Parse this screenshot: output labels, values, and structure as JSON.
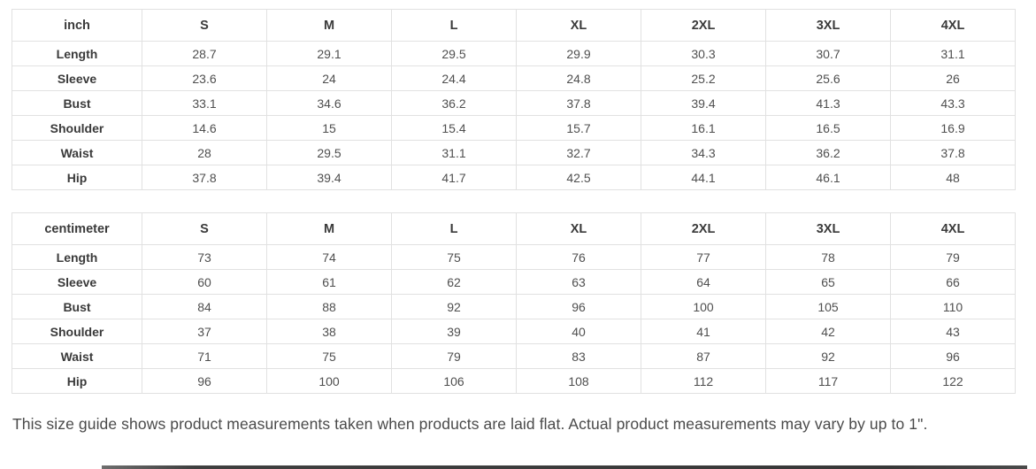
{
  "colors": {
    "table_border": "#e1e1e1",
    "header_text": "#3a3a3a",
    "cell_text": "#4f4f4f",
    "note_text": "#4a4a4a",
    "bottom_bar": "#3f3f3f",
    "background": "#ffffff"
  },
  "tables": [
    {
      "unit": "inch",
      "sizes": [
        "S",
        "M",
        "L",
        "XL",
        "2XL",
        "3XL",
        "4XL"
      ],
      "rows": [
        {
          "label": "Length",
          "values": [
            "28.7",
            "29.1",
            "29.5",
            "29.9",
            "30.3",
            "30.7",
            "31.1"
          ]
        },
        {
          "label": "Sleeve",
          "values": [
            "23.6",
            "24",
            "24.4",
            "24.8",
            "25.2",
            "25.6",
            "26"
          ]
        },
        {
          "label": "Bust",
          "values": [
            "33.1",
            "34.6",
            "36.2",
            "37.8",
            "39.4",
            "41.3",
            "43.3"
          ]
        },
        {
          "label": "Shoulder",
          "values": [
            "14.6",
            "15",
            "15.4",
            "15.7",
            "16.1",
            "16.5",
            "16.9"
          ]
        },
        {
          "label": "Waist",
          "values": [
            "28",
            "29.5",
            "31.1",
            "32.7",
            "34.3",
            "36.2",
            "37.8"
          ]
        },
        {
          "label": "Hip",
          "values": [
            "37.8",
            "39.4",
            "41.7",
            "42.5",
            "44.1",
            "46.1",
            "48"
          ]
        }
      ]
    },
    {
      "unit": "centimeter",
      "sizes": [
        "S",
        "M",
        "L",
        "XL",
        "2XL",
        "3XL",
        "4XL"
      ],
      "rows": [
        {
          "label": "Length",
          "values": [
            "73",
            "74",
            "75",
            "76",
            "77",
            "78",
            "79"
          ]
        },
        {
          "label": "Sleeve",
          "values": [
            "60",
            "61",
            "62",
            "63",
            "64",
            "65",
            "66"
          ]
        },
        {
          "label": "Bust",
          "values": [
            "84",
            "88",
            "92",
            "96",
            "100",
            "105",
            "110"
          ]
        },
        {
          "label": "Shoulder",
          "values": [
            "37",
            "38",
            "39",
            "40",
            "41",
            "42",
            "43"
          ]
        },
        {
          "label": "Waist",
          "values": [
            "71",
            "75",
            "79",
            "83",
            "87",
            "92",
            "96"
          ]
        },
        {
          "label": "Hip",
          "values": [
            "96",
            "100",
            "106",
            "108",
            "112",
            "117",
            "122"
          ]
        }
      ]
    }
  ],
  "footer": {
    "note": "This size guide shows product measurements taken when products are laid flat. Actual product measurements may vary by up to 1\"."
  }
}
